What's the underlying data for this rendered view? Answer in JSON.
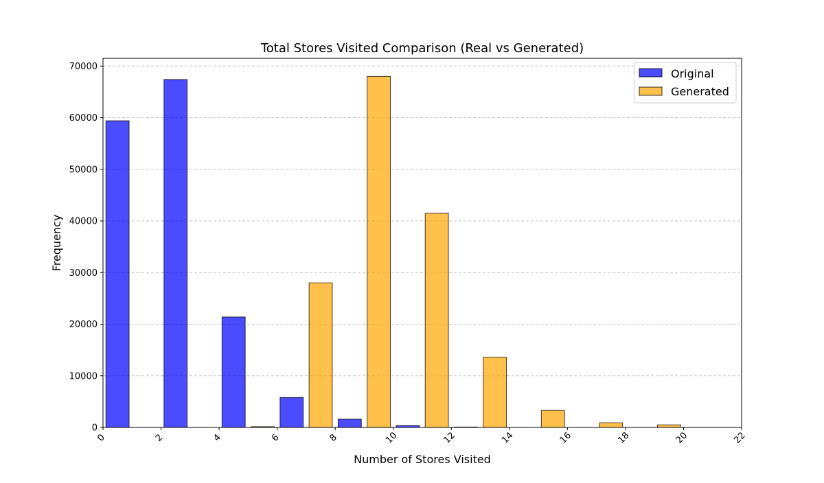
{
  "chart_data": {
    "type": "bar",
    "title": "Total Stores Visited Comparison (Real vs Generated)",
    "xlabel": "Number of Stores Visited",
    "ylabel": "Frequency",
    "xlim": [
      0,
      22
    ],
    "ylim": [
      0,
      71500
    ],
    "x_ticks": [
      0,
      2,
      4,
      6,
      8,
      10,
      12,
      14,
      16,
      18,
      20,
      22
    ],
    "y_ticks": [
      0,
      10000,
      20000,
      30000,
      40000,
      50000,
      60000,
      70000
    ],
    "bin_width": 2,
    "categories": [
      "0-2",
      "2-4",
      "4-6",
      "6-8",
      "8-10",
      "10-12",
      "12-14",
      "14-16",
      "16-18",
      "18-20",
      "20-22"
    ],
    "series": [
      {
        "name": "Original",
        "color": "#0000ff",
        "values": [
          59400,
          67400,
          21400,
          5800,
          1600,
          350,
          80,
          0,
          0,
          0,
          0
        ]
      },
      {
        "name": "Generated",
        "color": "#ffa500",
        "values": [
          0,
          0,
          150,
          28000,
          68000,
          41500,
          13600,
          3300,
          900,
          500,
          0
        ]
      }
    ],
    "grid": "y-dashed",
    "legend_position": "top-right"
  }
}
